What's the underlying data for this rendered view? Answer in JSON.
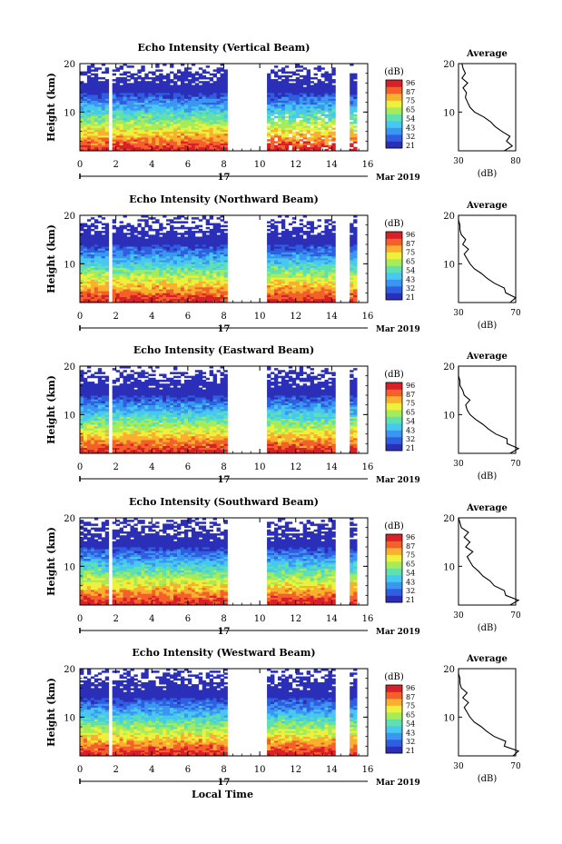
{
  "figure": {
    "date_label": "17",
    "month_label": "Mar 2019",
    "xlabel": "Local Time",
    "colorbar_unit": "(dB)",
    "colorbar_ticks": [
      "96",
      "87",
      "75",
      "65",
      "54",
      "43",
      "32",
      "21"
    ],
    "colormap": [
      "#2b2fb8",
      "#2f5fe0",
      "#3a96f0",
      "#47c8f0",
      "#5fe0b0",
      "#a6ec5a",
      "#eef03c",
      "#f8b02e",
      "#f4602a",
      "#d8202a"
    ],
    "avg_title": "Average",
    "avg_xlabel": "(dB)"
  },
  "chart_data": [
    {
      "type": "heatmap",
      "title": "Echo Intensity (Vertical Beam)",
      "ylabel": "Height (km)",
      "xlim": [
        0,
        16
      ],
      "ylim": [
        2,
        20
      ],
      "x_ticks": [
        "0",
        "2",
        "4",
        "6",
        "8",
        "10",
        "12",
        "14",
        "16"
      ],
      "y_ticks": [
        "20",
        "10"
      ],
      "data_gaps_hours": [
        [
          1.6,
          1.8
        ],
        [
          8.3,
          10.4
        ],
        [
          14.3,
          15.0
        ],
        [
          15.4,
          16.0
        ]
      ],
      "profile": {
        "xlim": [
          30,
          80
        ],
        "x_ticks": [
          "30",
          "80"
        ],
        "height_km": [
          2,
          3,
          4,
          5,
          6,
          7,
          8,
          9,
          10,
          11,
          12,
          13,
          14,
          15,
          16,
          17,
          18,
          19,
          20
        ],
        "avg_db": [
          70,
          77,
          72,
          75,
          68,
          62,
          58,
          52,
          44,
          40,
          38,
          36,
          37,
          34,
          38,
          33,
          36,
          34,
          33
        ]
      }
    },
    {
      "type": "heatmap",
      "title": "Echo Intensity (Northward Beam)",
      "ylabel": "Height (km)",
      "xlim": [
        0,
        16
      ],
      "ylim": [
        2,
        20
      ],
      "x_ticks": [
        "0",
        "2",
        "4",
        "6",
        "8",
        "10",
        "12",
        "14",
        "16"
      ],
      "y_ticks": [
        "20",
        "10"
      ],
      "data_gaps_hours": [
        [
          1.6,
          1.8
        ],
        [
          8.3,
          10.4
        ],
        [
          14.3,
          15.0
        ],
        [
          15.4,
          16.0
        ]
      ],
      "profile": {
        "xlim": [
          30,
          70
        ],
        "x_ticks": [
          "30",
          "70"
        ],
        "height_km": [
          2,
          3,
          4,
          5,
          6,
          7,
          8,
          9,
          10,
          11,
          12,
          13,
          14,
          15,
          16,
          17,
          18,
          19,
          20
        ],
        "avg_db": [
          66,
          70,
          63,
          62,
          55,
          50,
          46,
          41,
          38,
          36,
          34,
          37,
          33,
          35,
          32,
          31,
          31,
          30,
          30
        ]
      }
    },
    {
      "type": "heatmap",
      "title": "Echo Intensity (Eastward Beam)",
      "ylabel": "Height (km)",
      "xlim": [
        0,
        16
      ],
      "ylim": [
        2,
        20
      ],
      "x_ticks": [
        "0",
        "2",
        "4",
        "6",
        "8",
        "10",
        "12",
        "14",
        "16"
      ],
      "y_ticks": [
        "20",
        "10"
      ],
      "data_gaps_hours": [
        [
          1.6,
          1.8
        ],
        [
          8.3,
          10.4
        ],
        [
          14.3,
          15.0
        ],
        [
          15.4,
          16.0
        ]
      ],
      "profile": {
        "xlim": [
          30,
          70
        ],
        "x_ticks": [
          "30",
          "70"
        ],
        "height_km": [
          2,
          3,
          4,
          5,
          6,
          7,
          8,
          9,
          10,
          11,
          12,
          13,
          14,
          15,
          16,
          17,
          18,
          19,
          20
        ],
        "avg_db": [
          66,
          72,
          64,
          64,
          56,
          51,
          47,
          42,
          38,
          36,
          35,
          38,
          34,
          33,
          31,
          31,
          30,
          30,
          30
        ]
      }
    },
    {
      "type": "heatmap",
      "title": "Echo Intensity (Southward Beam)",
      "ylabel": "Height (km)",
      "xlim": [
        0,
        16
      ],
      "ylim": [
        2,
        20
      ],
      "x_ticks": [
        "0",
        "2",
        "4",
        "6",
        "8",
        "10",
        "12",
        "14",
        "16"
      ],
      "y_ticks": [
        "20",
        "10"
      ],
      "data_gaps_hours": [
        [
          1.6,
          1.8
        ],
        [
          8.3,
          10.4
        ],
        [
          14.3,
          15.0
        ],
        [
          15.4,
          16.0
        ]
      ],
      "profile": {
        "xlim": [
          30,
          70
        ],
        "x_ticks": [
          "30",
          "70"
        ],
        "height_km": [
          2,
          3,
          4,
          5,
          6,
          7,
          8,
          9,
          10,
          11,
          12,
          13,
          14,
          15,
          16,
          17,
          18,
          19,
          20
        ],
        "avg_db": [
          66,
          72,
          63,
          62,
          55,
          52,
          47,
          44,
          40,
          38,
          36,
          40,
          35,
          38,
          34,
          37,
          32,
          31,
          30
        ]
      }
    },
    {
      "type": "heatmap",
      "title": "Echo Intensity (Westward Beam)",
      "ylabel": "Height (km)",
      "xlim": [
        0,
        16
      ],
      "ylim": [
        2,
        20
      ],
      "x_ticks": [
        "0",
        "2",
        "4",
        "6",
        "8",
        "10",
        "12",
        "14",
        "16"
      ],
      "y_ticks": [
        "20",
        "10"
      ],
      "data_gaps_hours": [
        [
          1.6,
          1.8
        ],
        [
          8.3,
          10.4
        ],
        [
          14.3,
          15.0
        ],
        [
          15.4,
          16.0
        ]
      ],
      "profile": {
        "xlim": [
          30,
          70
        ],
        "x_ticks": [
          "30",
          "70"
        ],
        "height_km": [
          2,
          3,
          4,
          5,
          6,
          7,
          8,
          9,
          10,
          11,
          12,
          13,
          14,
          15,
          16,
          17,
          18,
          19,
          20
        ],
        "avg_db": [
          68,
          72,
          62,
          63,
          55,
          50,
          46,
          41,
          38,
          36,
          34,
          37,
          33,
          36,
          32,
          31,
          31,
          30,
          30
        ]
      }
    }
  ]
}
